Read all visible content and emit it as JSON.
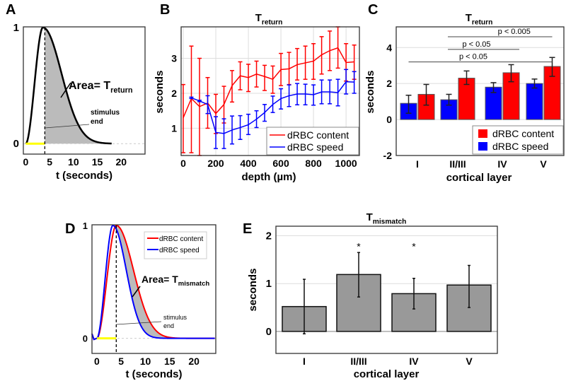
{
  "panel_labels": [
    "A",
    "B",
    "C",
    "D",
    "E"
  ],
  "chart_data": [
    {
      "id": "A",
      "type": "line",
      "title": "",
      "xlabel": "t (seconds)",
      "ylabel": "",
      "xlim": [
        -0.5,
        25
      ],
      "ylim": [
        -0.09,
        1.005
      ],
      "xticks": [
        0,
        5,
        10,
        15,
        20
      ],
      "yticks": [
        0,
        1
      ],
      "curve": {
        "peak_time": 3.6,
        "decay_width": 5.5,
        "end_time": 18,
        "color": "#000000"
      },
      "stimulus_end": 4,
      "stimulus_color": "#ffff00",
      "annotations": {
        "area_label": "Area= T",
        "area_sub": "return",
        "stim_line1": "stimulus",
        "stim_line2": "end"
      }
    },
    {
      "id": "B",
      "type": "line",
      "title": "T",
      "title_sub": "return",
      "xlabel": "depth (µm)",
      "ylabel": "seconds",
      "xlim": [
        -13,
        1082
      ],
      "ylim": [
        0.22,
        3.9
      ],
      "xticks": [
        0,
        200,
        400,
        600,
        800,
        1000
      ],
      "yticks": [
        1,
        2,
        3
      ],
      "grid": true,
      "legend": "bottom-right",
      "series": [
        {
          "name": "dRBC content",
          "color": "#ff0000",
          "x": [
            0,
            50,
            100,
            150,
            200,
            250,
            300,
            350,
            400,
            450,
            500,
            550,
            600,
            650,
            700,
            750,
            800,
            850,
            900,
            950,
            1000,
            1050
          ],
          "y": [
            1.3,
            1.85,
            1.62,
            1.72,
            1.42,
            1.68,
            2.22,
            2.5,
            2.45,
            2.55,
            2.48,
            2.4,
            2.68,
            2.7,
            2.82,
            2.87,
            2.92,
            3.1,
            3.22,
            3.3,
            2.88,
            2.9
          ],
          "lo": [
            0.3,
            0.3,
            0.15,
            1.0,
            0.85,
            1.15,
            1.75,
            2.1,
            2.05,
            2.18,
            2.08,
            2.0,
            2.22,
            2.25,
            2.38,
            2.4,
            2.4,
            2.55,
            2.65,
            2.72,
            2.35,
            2.4
          ],
          "hi": [
            2.25,
            3.35,
            3.0,
            2.45,
            1.97,
            2.2,
            2.65,
            2.9,
            2.83,
            2.92,
            2.8,
            2.78,
            3.14,
            3.17,
            3.28,
            3.35,
            3.42,
            3.62,
            3.78,
            3.9,
            3.42,
            3.38
          ]
        },
        {
          "name": "dRBC speed",
          "color": "#0000ff",
          "x": [
            50,
            100,
            150,
            200,
            250,
            300,
            350,
            400,
            450,
            500,
            550,
            600,
            650,
            700,
            750,
            800,
            850,
            900,
            950,
            1000,
            1050
          ],
          "y": [
            1.87,
            1.78,
            1.68,
            0.88,
            0.85,
            0.95,
            1.02,
            1.1,
            1.26,
            1.45,
            1.68,
            1.85,
            1.93,
            1.98,
            1.98,
            1.96,
            2.04,
            2.04,
            2.02,
            2.33,
            2.32
          ],
          "lo": [
            1.85,
            1.76,
            1.42,
            0.42,
            0.42,
            0.55,
            0.68,
            0.82,
            1.02,
            1.2,
            1.45,
            1.55,
            1.62,
            1.67,
            1.67,
            1.66,
            1.7,
            1.7,
            1.64,
            1.98,
            2.0
          ],
          "hi": [
            1.89,
            1.8,
            1.93,
            1.33,
            1.27,
            1.35,
            1.36,
            1.4,
            1.5,
            1.68,
            1.92,
            2.13,
            2.24,
            2.28,
            2.26,
            2.24,
            2.38,
            2.38,
            2.4,
            2.68,
            2.62
          ]
        }
      ]
    },
    {
      "id": "C",
      "type": "bar",
      "title": "T",
      "title_sub": "return",
      "xlabel": "cortical layer",
      "ylabel": "seconds",
      "ylim": [
        -2,
        5.15
      ],
      "yticks": [
        -2,
        0,
        2,
        4
      ],
      "grid": true,
      "legend": "bottom-right",
      "categories": [
        "I",
        "II/III",
        "IV",
        "V"
      ],
      "series": [
        {
          "name": "dRBC speed",
          "color": "#0000ff",
          "values": [
            0.9,
            1.1,
            1.8,
            2.0
          ],
          "lo": [
            0.35,
            0.8,
            1.5,
            1.75
          ],
          "hi": [
            1.35,
            1.4,
            2.05,
            2.25
          ]
        },
        {
          "name": "dRBC content",
          "color": "#ff0000",
          "values": [
            1.4,
            2.3,
            2.6,
            2.95
          ],
          "lo": [
            0.8,
            1.95,
            2.1,
            2.4
          ],
          "hi": [
            1.95,
            2.7,
            3.05,
            3.45
          ]
        }
      ],
      "legend_order": [
        "dRBC content",
        "dRBC speed"
      ],
      "significance": [
        {
          "label": "p < 0.005",
          "from": "II/III",
          "to": "V",
          "level": 4.6
        },
        {
          "label": "p < 0.05",
          "from": "II/III",
          "to": "IV",
          "level": 3.9
        },
        {
          "label": "p < 0.05",
          "from": "I",
          "to": "V",
          "level": 3.2
        }
      ]
    },
    {
      "id": "D",
      "type": "line",
      "title": "",
      "xlabel": "t (seconds)",
      "ylabel": "",
      "xlim": [
        -1,
        24.5
      ],
      "ylim": [
        -0.134,
        1.006
      ],
      "xticks": [
        0,
        5,
        10,
        15,
        20
      ],
      "yticks": [
        0,
        1
      ],
      "legend": "top-right",
      "series": [
        {
          "name": "dRBC content",
          "color": "#ff0000",
          "peak_time": 4.0,
          "decay_width": 5.0
        },
        {
          "name": "dRBC speed",
          "color": "#0000ff",
          "peak_time": 3.3,
          "decay_width": 3.9
        }
      ],
      "stimulus_end": 4,
      "stimulus_color": "#ffff00",
      "annotations": {
        "area_label": "Area= T",
        "area_sub": "mismatch",
        "stim_line1": "stimulus",
        "stim_line2": "end"
      }
    },
    {
      "id": "E",
      "type": "bar",
      "title": "T",
      "title_sub": "mismatch",
      "xlabel": "cortical layer",
      "ylabel": "seconds",
      "ylim": [
        -0.46,
        2.2
      ],
      "yticks": [
        0,
        1,
        2
      ],
      "grid": true,
      "categories": [
        "I",
        "II/III",
        "IV",
        "V"
      ],
      "values": [
        0.52,
        1.19,
        0.79,
        0.97
      ],
      "lo": [
        -0.05,
        0.72,
        0.47,
        0.5
      ],
      "hi": [
        1.09,
        1.65,
        1.11,
        1.38
      ],
      "color": "#999999",
      "markers": [
        "",
        "*",
        "*",
        ""
      ],
      "marker_level": 1.82
    }
  ]
}
